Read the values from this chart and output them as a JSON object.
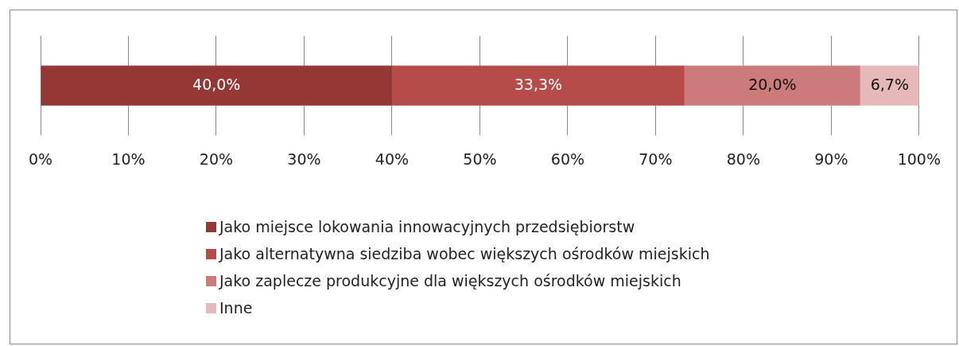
{
  "chart_data": {
    "type": "bar",
    "orientation": "horizontal",
    "stacked": true,
    "categories": [
      null
    ],
    "series": [
      {
        "name": "Jako miejsce lokowania innowacyjnych przedsiębiorstw",
        "color": "#953735",
        "values": [
          40.0
        ],
        "value_labels": [
          "40,0%"
        ]
      },
      {
        "name": "Jako alternatywna siedziba wobec większych ośrodków miejskich",
        "color": "#b64c49",
        "values": [
          33.3
        ],
        "value_labels": [
          "33,3%"
        ]
      },
      {
        "name": "Jako zaplecze produkcyjne dla większych ośrodków miejskich",
        "color": "#cb7c7a",
        "values": [
          20.0
        ],
        "value_labels": [
          "20,0%"
        ]
      },
      {
        "name": "Inne",
        "color": "#e6b9b8",
        "values": [
          6.7
        ],
        "value_labels": [
          "6,7%"
        ]
      }
    ],
    "xlim": [
      0,
      100
    ],
    "xticks": [
      {
        "value": 0,
        "label": "0%"
      },
      {
        "value": 10,
        "label": "10%"
      },
      {
        "value": 20,
        "label": "20%"
      },
      {
        "value": 30,
        "label": "30%"
      },
      {
        "value": 40,
        "label": "40%"
      },
      {
        "value": 50,
        "label": "50%"
      },
      {
        "value": 60,
        "label": "60%"
      },
      {
        "value": 70,
        "label": "70%"
      },
      {
        "value": 80,
        "label": "80%"
      },
      {
        "value": 90,
        "label": "90%"
      },
      {
        "value": 100,
        "label": "100%"
      }
    ],
    "grid": "x",
    "legend": "bottom",
    "tick_labels": "x"
  }
}
